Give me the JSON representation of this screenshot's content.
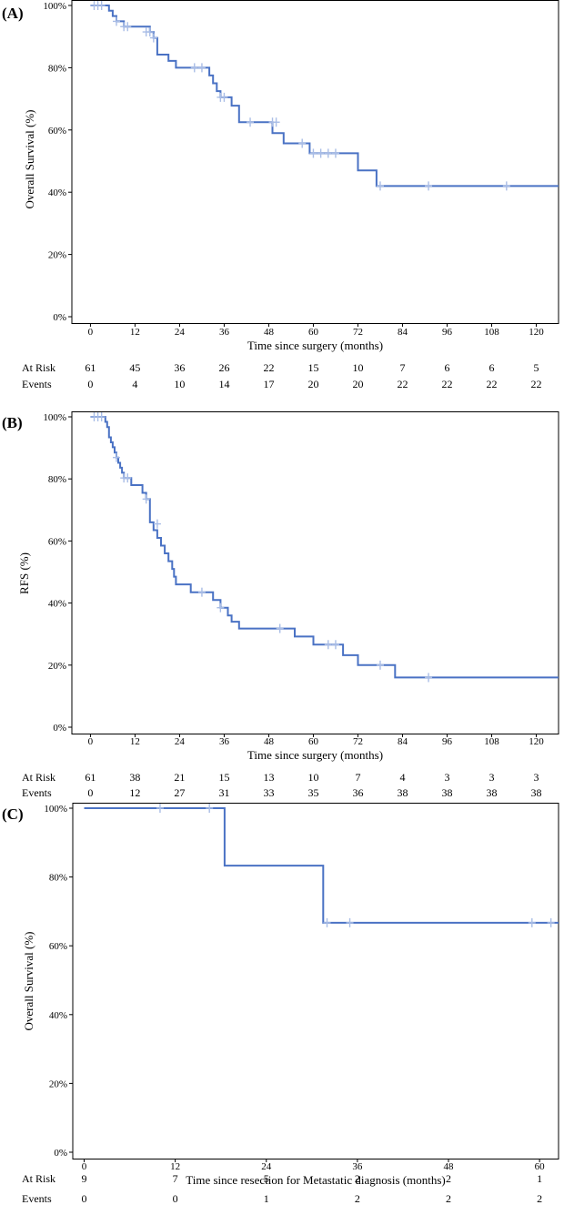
{
  "chart_data": [
    {
      "type": "line",
      "panel_label": "(A)",
      "xlabel": "Time since surgery (months)",
      "ylabel": "Overall Survival (%)",
      "xlim": [
        -5,
        126
      ],
      "ylim": [
        0,
        100
      ],
      "xticks": [
        0,
        12,
        24,
        36,
        48,
        60,
        72,
        84,
        96,
        108,
        120
      ],
      "yticks": [
        0,
        20,
        40,
        60,
        80,
        100
      ],
      "ytick_labels": [
        "0%",
        "20%",
        "40%",
        "60%",
        "80%",
        "100%"
      ],
      "series": [
        {
          "name": "Overall Survival",
          "steps": [
            [
              0,
              100
            ],
            [
              5,
              98.3
            ],
            [
              6,
              96.6
            ],
            [
              7,
              94.9
            ],
            [
              9,
              93.2
            ],
            [
              16,
              91.5
            ],
            [
              17,
              89.6
            ],
            [
              18,
              84.2
            ],
            [
              21,
              82.2
            ],
            [
              23,
              80.0
            ],
            [
              32,
              77.5
            ],
            [
              33,
              75.0
            ],
            [
              34,
              72.5
            ],
            [
              35,
              70.5
            ],
            [
              38,
              67.8
            ],
            [
              40,
              62.5
            ],
            [
              49,
              59.0
            ],
            [
              52,
              55.7
            ],
            [
              59,
              52.5
            ],
            [
              72,
              47.0
            ],
            [
              77,
              42.0
            ],
            [
              126,
              42.0
            ]
          ],
          "censored": [
            [
              1,
              100
            ],
            [
              2,
              100
            ],
            [
              3,
              100
            ],
            [
              7,
              94.9
            ],
            [
              9,
              93.2
            ],
            [
              10,
              93.2
            ],
            [
              15,
              91.5
            ],
            [
              16,
              91.5
            ],
            [
              17,
              89.6
            ],
            [
              28,
              80.0
            ],
            [
              30,
              80.0
            ],
            [
              35,
              70.5
            ],
            [
              36,
              70.5
            ],
            [
              43,
              62.5
            ],
            [
              49,
              62.5
            ],
            [
              50,
              62.5
            ],
            [
              57,
              55.7
            ],
            [
              60,
              52.5
            ],
            [
              62,
              52.5
            ],
            [
              64,
              52.5
            ],
            [
              66,
              52.5
            ],
            [
              78,
              42.0
            ],
            [
              91,
              42.0
            ],
            [
              112,
              42.0
            ]
          ]
        }
      ],
      "risk_table": {
        "rows": [
          {
            "label": "At Risk",
            "values": [
              "61",
              "45",
              "36",
              "26",
              "22",
              "15",
              "10",
              "7",
              "6",
              "6",
              "5"
            ]
          },
          {
            "label": "Events",
            "values": [
              "0",
              "4",
              "10",
              "14",
              "17",
              "20",
              "20",
              "22",
              "22",
              "22",
              "22"
            ]
          }
        ]
      }
    },
    {
      "type": "line",
      "panel_label": "(B)",
      "xlabel": "Time since surgery (months)",
      "ylabel": "RFS (%)",
      "xlim": [
        -5,
        126
      ],
      "ylim": [
        0,
        100
      ],
      "xticks": [
        0,
        12,
        24,
        36,
        48,
        60,
        72,
        84,
        96,
        108,
        120
      ],
      "yticks": [
        0,
        20,
        40,
        60,
        80,
        100
      ],
      "ytick_labels": [
        "0%",
        "20%",
        "40%",
        "60%",
        "80%",
        "100%"
      ],
      "series": [
        {
          "name": "RFS",
          "steps": [
            [
              0,
              100
            ],
            [
              4,
              98.4
            ],
            [
              4.5,
              96.7
            ],
            [
              5,
              93.4
            ],
            [
              5.5,
              91.8
            ],
            [
              6,
              90.2
            ],
            [
              6.5,
              88.5
            ],
            [
              7,
              86.9
            ],
            [
              7.5,
              85.2
            ],
            [
              8,
              83.6
            ],
            [
              8.5,
              82.0
            ],
            [
              9,
              80.3
            ],
            [
              10,
              80.3
            ],
            [
              11,
              78.0
            ],
            [
              14,
              75.5
            ],
            [
              15,
              73.5
            ],
            [
              16,
              66.0
            ],
            [
              17,
              63.5
            ],
            [
              18,
              61.0
            ],
            [
              19,
              58.5
            ],
            [
              20,
              56.0
            ],
            [
              21,
              53.5
            ],
            [
              22,
              51.0
            ],
            [
              22.5,
              48.5
            ],
            [
              23,
              46.0
            ],
            [
              27,
              43.5
            ],
            [
              33,
              41.0
            ],
            [
              35,
              38.5
            ],
            [
              37,
              36.0
            ],
            [
              38,
              34.0
            ],
            [
              40,
              31.8
            ],
            [
              55,
              29.2
            ],
            [
              60,
              26.6
            ],
            [
              68,
              23.2
            ],
            [
              72,
              20.0
            ],
            [
              82,
              16.0
            ],
            [
              126,
              16.0
            ]
          ],
          "censored": [
            [
              1,
              100
            ],
            [
              2,
              100
            ],
            [
              3,
              100
            ],
            [
              7,
              86.9
            ],
            [
              9,
              80.3
            ],
            [
              10,
              80.3
            ],
            [
              15,
              73.5
            ],
            [
              18,
              65.5
            ],
            [
              30,
              43.5
            ],
            [
              35,
              38.5
            ],
            [
              51,
              31.8
            ],
            [
              64,
              26.6
            ],
            [
              66,
              26.6
            ],
            [
              78,
              20.0
            ],
            [
              91,
              16.0
            ]
          ]
        }
      ],
      "risk_table": {
        "rows": [
          {
            "label": "At Risk",
            "values": [
              "61",
              "38",
              "21",
              "15",
              "13",
              "10",
              "7",
              "4",
              "3",
              "3",
              "3"
            ]
          },
          {
            "label": "Events",
            "values": [
              "0",
              "12",
              "27",
              "31",
              "33",
              "35",
              "36",
              "38",
              "38",
              "38",
              "38"
            ]
          }
        ]
      }
    },
    {
      "type": "line",
      "panel_label": "(C)",
      "xlabel": "Time since resection for Metastatic diagnosis (months)",
      "ylabel": "Overall Survival (%)",
      "xlim": [
        -1.5,
        62.5
      ],
      "ylim": [
        0,
        100
      ],
      "xticks": [
        0,
        12,
        24,
        36,
        48,
        60
      ],
      "yticks": [
        0,
        20,
        40,
        60,
        80,
        100
      ],
      "ytick_labels": [
        "0%",
        "20%",
        "40%",
        "60%",
        "80%",
        "100%"
      ],
      "series": [
        {
          "name": "Overall Survival",
          "steps": [
            [
              0,
              100
            ],
            [
              18.5,
              83.3
            ],
            [
              31.5,
              66.7
            ],
            [
              62.5,
              66.7
            ]
          ],
          "censored": [
            [
              10,
              100
            ],
            [
              16.5,
              100
            ],
            [
              32,
              66.7
            ],
            [
              35,
              66.7
            ],
            [
              59,
              66.7
            ],
            [
              61.5,
              66.7
            ]
          ]
        }
      ],
      "risk_table": {
        "rows": [
          {
            "label": "At Risk",
            "values": [
              "9",
              "7",
              "5",
              "2",
              "2",
              "1"
            ]
          },
          {
            "label": "Events",
            "values": [
              "0",
              "0",
              "1",
              "2",
              "2",
              "2"
            ]
          }
        ]
      }
    }
  ]
}
